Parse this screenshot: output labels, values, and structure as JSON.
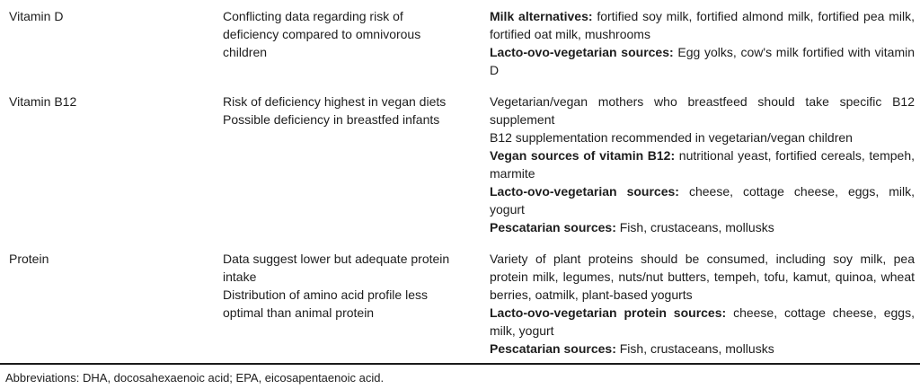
{
  "table": {
    "rows": [
      {
        "nutrient": "Vitamin D",
        "risks": [
          "Conflicting data regarding risk of deficiency compared to omnivorous children"
        ],
        "sources": [
          {
            "label": "Milk alternatives:",
            "text": " fortified soy milk, fortified almond milk, fortified pea milk, fortified oat milk, mushrooms"
          },
          {
            "label": "Lacto-ovo-vegetarian sources:",
            "text": " Egg yolks, cow's milk fortified with vitamin D"
          }
        ]
      },
      {
        "nutrient": "Vitamin B12",
        "risks": [
          "Risk of deficiency highest in vegan diets",
          "Possible deficiency in breastfed infants"
        ],
        "sources": [
          {
            "label": "",
            "text": "Vegetarian/vegan mothers who breastfeed should take specific B12 supplement"
          },
          {
            "label": "",
            "text": "B12 supplementation recommended in vegetarian/vegan children"
          },
          {
            "label": "Vegan sources of vitamin B12:",
            "text": " nutritional yeast, fortified cereals, tempeh, marmite"
          },
          {
            "label": "Lacto-ovo-vegetarian sources:",
            "text": " cheese, cottage cheese, eggs, milk, yogurt"
          },
          {
            "label": "Pescatarian sources:",
            "text": " Fish, crustaceans, mollusks"
          }
        ]
      },
      {
        "nutrient": "Protein",
        "risks": [
          "Data suggest lower but adequate protein intake",
          "Distribution of amino acid profile less optimal than animal protein"
        ],
        "sources": [
          {
            "label": "",
            "text": "Variety of plant proteins should be consumed, including soy milk, pea protein milk, legumes, nuts/nut butters, tempeh, tofu, kamut, quinoa, wheat berries, oatmilk, plant-based yogurts"
          },
          {
            "label": "Lacto-ovo-vegetarian protein sources:",
            "text": " cheese, cottage cheese, eggs, milk, yogurt"
          },
          {
            "label": "Pescatarian sources:",
            "text": " Fish, crustaceans, mollusks"
          }
        ]
      }
    ],
    "footnote": "Abbreviations: DHA, docosahexaenoic acid; EPA, eicosapentaenoic acid.",
    "text_color": "#1d1d1d",
    "rule_color": "#1b1b1b"
  }
}
